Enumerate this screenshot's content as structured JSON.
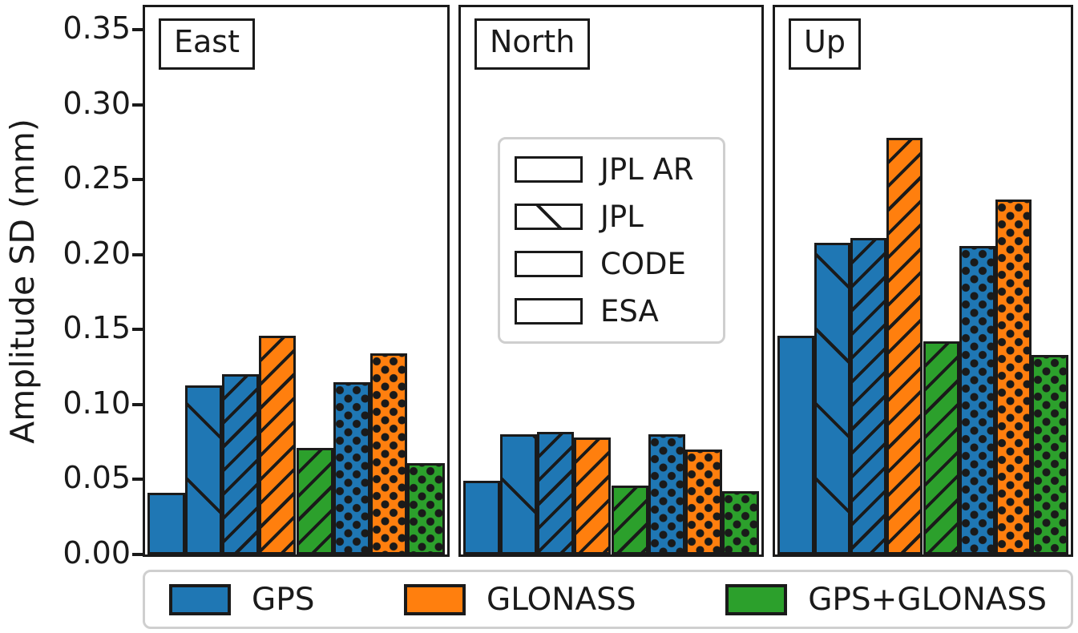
{
  "figure": {
    "ylabel": "Amplitude SD (mm)",
    "background": "#ffffff",
    "edge_color": "#1a1a1a",
    "legend_border_color": "#cfcfcf"
  },
  "chart_data": {
    "type": "bar",
    "title": "",
    "xlabel": "",
    "ylabel": "Amplitude SD (mm)",
    "ylim": [
      0,
      0.365
    ],
    "grid": false,
    "yticks": [
      "0.00",
      "0.05",
      "0.10",
      "0.15",
      "0.20",
      "0.25",
      "0.30",
      "0.35"
    ],
    "panels": [
      "East",
      "North",
      "Up"
    ],
    "hatch_legend": {
      "position": "inside North panel",
      "items": [
        {
          "label": "JPL AR",
          "hatch": "none"
        },
        {
          "label": "JPL",
          "hatch": "backslash"
        },
        {
          "label": "CODE",
          "hatch": "slash"
        },
        {
          "label": "ESA",
          "hatch": "dots"
        }
      ]
    },
    "color_legend": {
      "position": "below axes",
      "items": [
        {
          "label": "GPS",
          "color": "#1f77b4"
        },
        {
          "label": "GLONASS",
          "color": "#ff7f0e"
        },
        {
          "label": "GPS+GLONASS",
          "color": "#2ca02c"
        }
      ]
    },
    "bars": [
      {
        "center": "JPL AR",
        "constellation": "GPS",
        "hatch": "none",
        "color": "#1f77b4",
        "values": {
          "East": 0.041,
          "North": 0.049,
          "Up": 0.146
        }
      },
      {
        "center": "JPL",
        "constellation": "GPS",
        "hatch": "backslash",
        "color": "#1f77b4",
        "values": {
          "East": 0.113,
          "North": 0.08,
          "Up": 0.208
        }
      },
      {
        "center": "CODE",
        "constellation": "GPS",
        "hatch": "slash",
        "color": "#1f77b4",
        "values": {
          "East": 0.12,
          "North": 0.082,
          "Up": 0.211
        }
      },
      {
        "center": "CODE",
        "constellation": "GLONASS",
        "hatch": "slash",
        "color": "#ff7f0e",
        "values": {
          "East": 0.146,
          "North": 0.078,
          "Up": 0.278
        }
      },
      {
        "center": "CODE",
        "constellation": "GPS+GLONASS",
        "hatch": "slash",
        "color": "#2ca02c",
        "values": {
          "East": 0.071,
          "North": 0.046,
          "Up": 0.142
        }
      },
      {
        "center": "ESA",
        "constellation": "GPS",
        "hatch": "dots",
        "color": "#1f77b4",
        "values": {
          "East": 0.115,
          "North": 0.08,
          "Up": 0.206
        }
      },
      {
        "center": "ESA",
        "constellation": "GLONASS",
        "hatch": "dots",
        "color": "#ff7f0e",
        "values": {
          "East": 0.134,
          "North": 0.07,
          "Up": 0.237
        }
      },
      {
        "center": "ESA",
        "constellation": "GPS+GLONASS",
        "hatch": "dots",
        "color": "#2ca02c",
        "values": {
          "East": 0.061,
          "North": 0.042,
          "Up": 0.133
        }
      }
    ]
  }
}
